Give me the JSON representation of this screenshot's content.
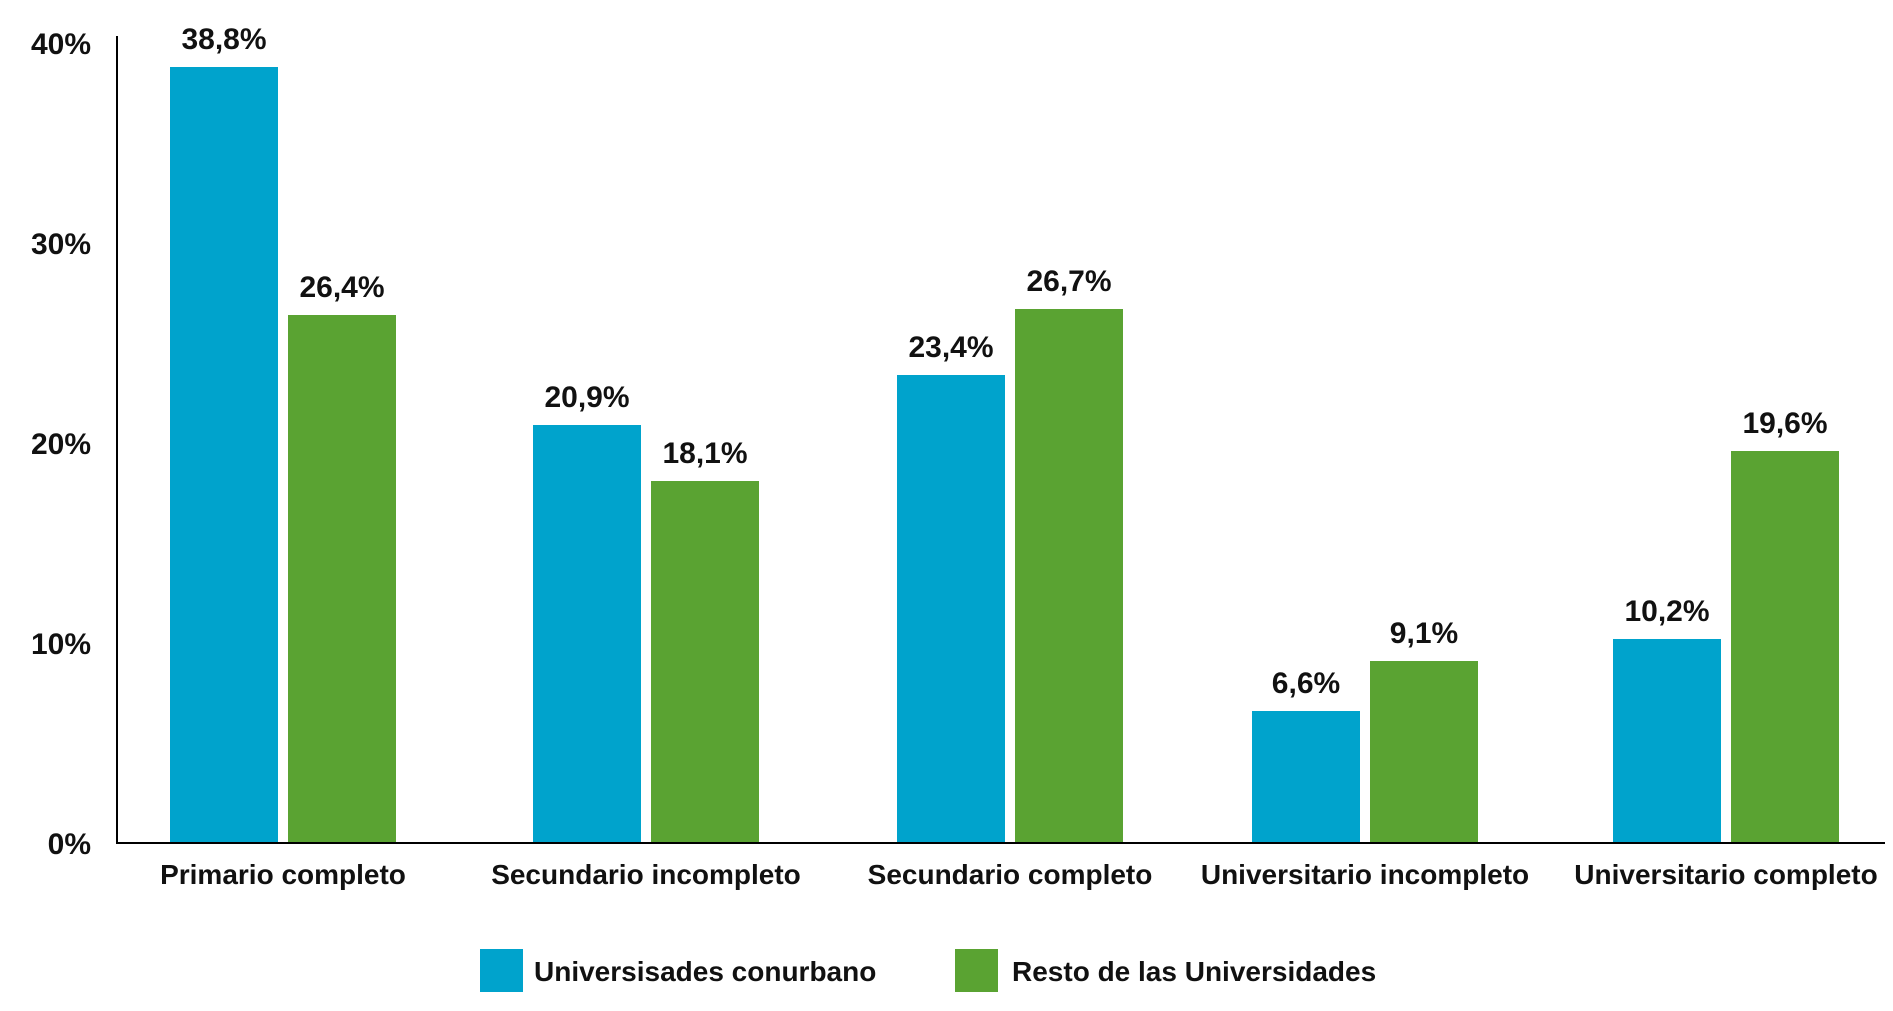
{
  "chart_data": {
    "type": "bar",
    "title": "",
    "xlabel": "",
    "ylabel": "",
    "ylim": [
      0,
      40
    ],
    "yticks": [
      0,
      10,
      20,
      30,
      40
    ],
    "ytick_labels": [
      "0%",
      "10%",
      "20%",
      "30%",
      "40%"
    ],
    "grid": false,
    "legend_position": "bottom",
    "categories": [
      "Primario completo",
      "Secundario incompleto",
      "Secundario completo",
      "Universitario incompleto",
      "Universitario completo"
    ],
    "series": [
      {
        "name": "Universisades conurbano",
        "color": "#00A3CC",
        "values": [
          38.8,
          20.9,
          23.4,
          6.6,
          10.2
        ],
        "labels": [
          "38,8%",
          "20,9%",
          "23,4%",
          "6,6%",
          "10,2%"
        ]
      },
      {
        "name": "Resto de las Universidades",
        "color": "#5AA332",
        "values": [
          26.4,
          18.1,
          26.7,
          9.1,
          19.6
        ],
        "labels": [
          "26,4%",
          "18,1%",
          "26,7%",
          "9,1%",
          "19,6%"
        ]
      }
    ]
  }
}
